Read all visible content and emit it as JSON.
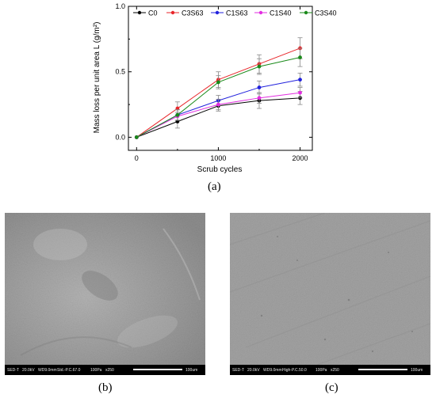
{
  "chart_data": {
    "type": "line",
    "xlabel": "Scrub cycles",
    "ylabel": "Mass loss per unit area L (g/m²)",
    "xlim": [
      -100,
      2150
    ],
    "ylim": [
      -0.1,
      1.0
    ],
    "xticks": [
      0,
      1000,
      2000
    ],
    "xtick_labels": [
      "0",
      "1000",
      "2000"
    ],
    "yticks": [
      0.0,
      0.5,
      1.0
    ],
    "ytick_labels": [
      "0.0",
      "0.5",
      "1.0"
    ],
    "legend_position": "top",
    "grid": false,
    "x": [
      0,
      500,
      1000,
      1500,
      2000
    ],
    "series": [
      {
        "name": "C0",
        "color": "#000000",
        "values": [
          0.0,
          0.12,
          0.24,
          0.28,
          0.3
        ],
        "errors": [
          0,
          0.05,
          0.04,
          0.06,
          0.05
        ]
      },
      {
        "name": "C3S63",
        "color": "#e8262a",
        "values": [
          0.0,
          0.22,
          0.44,
          0.56,
          0.68
        ],
        "errors": [
          0,
          0.05,
          0.06,
          0.07,
          0.08
        ]
      },
      {
        "name": "C1S63",
        "color": "#2222dd",
        "values": [
          0.0,
          0.17,
          0.28,
          0.38,
          0.44
        ],
        "errors": [
          0,
          0.04,
          0.04,
          0.05,
          0.05
        ]
      },
      {
        "name": "C1S40",
        "color": "#e22ee0",
        "values": [
          0.0,
          0.16,
          0.25,
          0.3,
          0.34
        ],
        "errors": [
          0,
          0.03,
          0.04,
          0.04,
          0.04
        ]
      },
      {
        "name": "C3S40",
        "color": "#1a8a1a",
        "values": [
          0.0,
          0.17,
          0.42,
          0.54,
          0.61
        ],
        "errors": [
          0,
          0.04,
          0.05,
          0.06,
          0.07
        ]
      }
    ]
  },
  "captions": {
    "a": "(a)",
    "b": "(b)",
    "c": "(c)"
  },
  "images": {
    "b": {
      "databar": [
        "SED-T",
        "20.0kV",
        "WD9.0mm",
        "Std.-P.C.67.0",
        "100Pa",
        "x250",
        "100um"
      ]
    },
    "c": {
      "databar": [
        "SED-T",
        "20.0kV",
        "WD9.0mm",
        "High-P.C.50.0",
        "100Pa",
        "x250",
        "100um"
      ]
    }
  }
}
